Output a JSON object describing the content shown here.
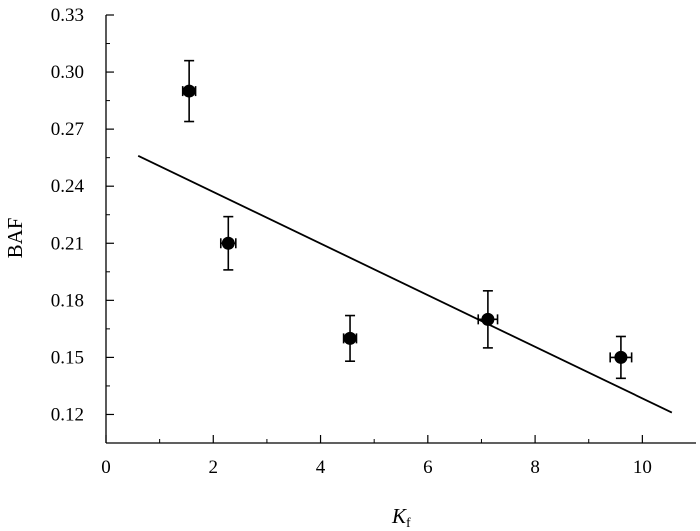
{
  "chart_data": {
    "type": "scatter",
    "title": "",
    "xlabel": "K",
    "xlabel_sub": "f",
    "ylabel": "BAF",
    "xlim": [
      0,
      11
    ],
    "ylim": [
      0.105,
      0.33
    ],
    "xticks": [
      0,
      2,
      4,
      6,
      8,
      10
    ],
    "xtick_labels": [
      "0",
      "2",
      "4",
      "6",
      "8",
      "10"
    ],
    "yticks": [
      0.12,
      0.15,
      0.18,
      0.21,
      0.24,
      0.27,
      0.3,
      0.33
    ],
    "ytick_labels": [
      "0.12",
      "0.15",
      "0.18",
      "0.21",
      "0.24",
      "0.27",
      "0.30",
      "0.33"
    ],
    "grid": false,
    "points": [
      {
        "x": 1.55,
        "y": 0.29,
        "y_err": 0.016,
        "x_err": 0.12
      },
      {
        "x": 2.28,
        "y": 0.21,
        "y_err": 0.014,
        "x_err": 0.14
      },
      {
        "x": 4.55,
        "y": 0.16,
        "y_err": 0.012,
        "x_err": 0.12
      },
      {
        "x": 7.12,
        "y": 0.17,
        "y_err": 0.015,
        "x_err": 0.18
      },
      {
        "x": 9.6,
        "y": 0.15,
        "y_err": 0.011,
        "x_err": 0.2
      }
    ],
    "fit_line": {
      "x": [
        0.6,
        10.55
      ],
      "y": [
        0.256,
        0.121
      ]
    },
    "colors": {
      "marker": "#000000",
      "line": "#000000",
      "axis": "#000000"
    }
  }
}
